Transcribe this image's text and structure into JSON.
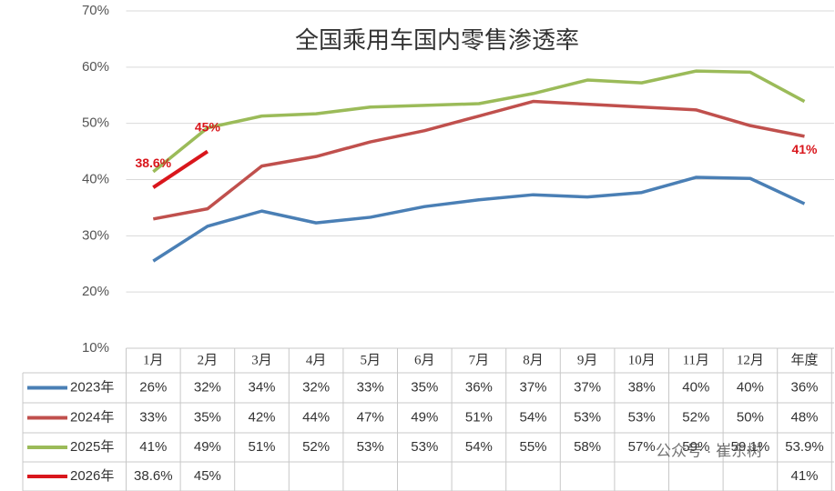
{
  "chart_data": {
    "type": "line",
    "title": "全国乘用车国内零售渗透率",
    "categories": [
      "1月",
      "2月",
      "3月",
      "4月",
      "5月",
      "6月",
      "7月",
      "8月",
      "9月",
      "10月",
      "11月",
      "12月",
      "年度"
    ],
    "ylim": [
      10,
      70
    ],
    "yticks": [
      {
        "value": 10,
        "label": "10%"
      },
      {
        "value": 20,
        "label": "20%"
      },
      {
        "value": 30,
        "label": "30%"
      },
      {
        "value": 40,
        "label": "40%"
      },
      {
        "value": 50,
        "label": "50%"
      },
      {
        "value": 60,
        "label": "60%"
      },
      {
        "value": 70,
        "label": "70%"
      }
    ],
    "grid": true,
    "series": [
      {
        "name": "2023年",
        "color": "#4a7fb5",
        "values": [
          25.5,
          31.7,
          34.4,
          32.3,
          33.3,
          35.2,
          36.4,
          37.3,
          36.9,
          37.7,
          40.4,
          40.2,
          35.7
        ],
        "value_labels": [
          "26%",
          "32%",
          "34%",
          "32%",
          "33%",
          "35%",
          "36%",
          "37%",
          "37%",
          "38%",
          "40%",
          "40%",
          "36%"
        ]
      },
      {
        "name": "2024年",
        "color": "#c0504d",
        "values": [
          33.0,
          34.8,
          42.4,
          44.1,
          46.7,
          48.7,
          51.3,
          53.9,
          53.4,
          52.9,
          52.4,
          49.6,
          47.7
        ],
        "value_labels": [
          "33%",
          "35%",
          "42%",
          "44%",
          "47%",
          "49%",
          "51%",
          "54%",
          "53%",
          "53%",
          "52%",
          "50%",
          "48%"
        ]
      },
      {
        "name": "2025年",
        "color": "#9bbb59",
        "values": [
          41.4,
          49.2,
          51.3,
          51.7,
          52.9,
          53.2,
          53.5,
          55.3,
          57.7,
          57.2,
          59.3,
          59.1,
          53.9
        ],
        "value_labels": [
          "41%",
          "49%",
          "51%",
          "52%",
          "53%",
          "53%",
          "54%",
          "55%",
          "58%",
          "57%",
          "59%",
          "59.1%",
          "53.9%"
        ]
      },
      {
        "name": "2026年",
        "color": "#d9161c",
        "values": [
          38.6,
          45,
          null,
          null,
          null,
          null,
          null,
          null,
          null,
          null,
          null,
          null,
          41
        ],
        "value_labels": [
          "38.6%",
          "45%",
          null,
          null,
          null,
          null,
          null,
          null,
          null,
          null,
          null,
          null,
          "41%"
        ]
      }
    ],
    "watermark": "公众号 · 崔东树"
  }
}
